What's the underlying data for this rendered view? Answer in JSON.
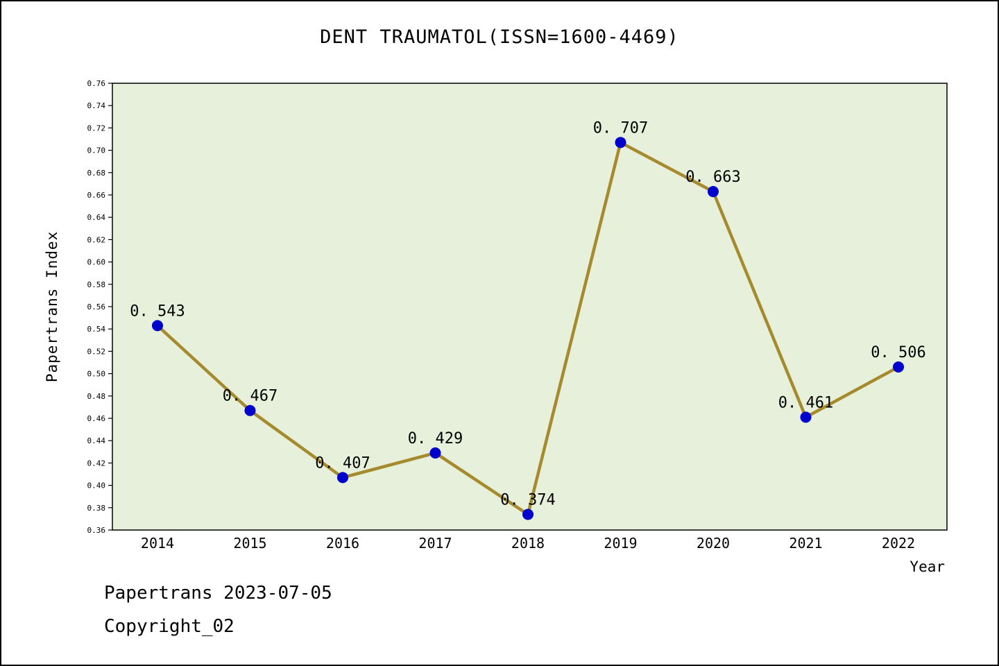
{
  "title": "DENT TRAUMATOL(ISSN=1600-4469)",
  "footer": {
    "line1": "Papertrans 2023-07-05",
    "line2": "Copyright_02"
  },
  "chart_data": {
    "type": "line",
    "title": "DENT TRAUMATOL(ISSN=1600-4469)",
    "x": [
      2014,
      2015,
      2016,
      2017,
      2018,
      2019,
      2020,
      2021,
      2022
    ],
    "series": [
      {
        "name": "Papertrans Index",
        "values": [
          0.543,
          0.467,
          0.407,
          0.429,
          0.374,
          0.707,
          0.663,
          0.461,
          0.506
        ]
      }
    ],
    "point_labels": [
      "0. 543",
      "0. 467",
      "0. 407",
      "0. 429",
      "0. 374",
      "0. 707",
      "0. 663",
      "0. 461",
      "0. 506"
    ],
    "xlabel": "Year",
    "ylabel": "Papertrans Index",
    "ylim": [
      0.36,
      0.76
    ],
    "ytick_step": 0.02,
    "grid": false,
    "legend": "none",
    "colors": {
      "line": "#a58b2d",
      "marker": "#0000cd",
      "plot_bg": "#e7f0da",
      "axis": "#000000",
      "text": "#000000"
    }
  }
}
